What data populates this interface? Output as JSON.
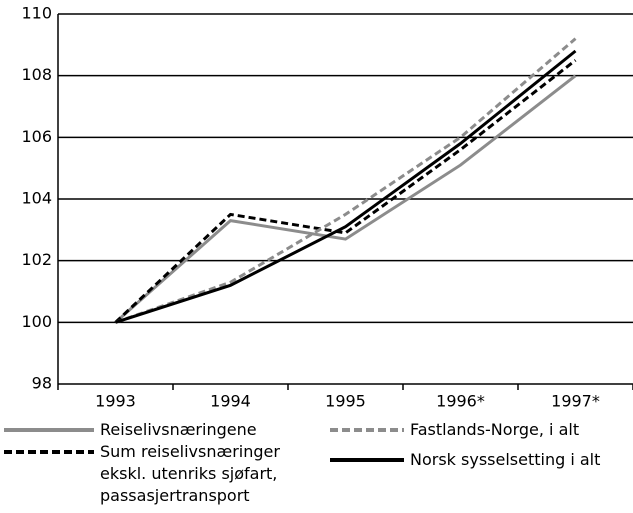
{
  "chart_data": {
    "type": "line",
    "categories": [
      "1993",
      "1994",
      "1995",
      "1996*",
      "1997*"
    ],
    "series": [
      {
        "name": "Reiselivsnæringene",
        "color": "#8c8c8c",
        "dash": false,
        "values": [
          100,
          103.3,
          102.7,
          105.1,
          108.0
        ]
      },
      {
        "name": "Sum reiselivsnæringer\nekskl. utenriks sjøfart,\npassasjertransport",
        "color": "#000000",
        "dash": true,
        "values": [
          100,
          103.5,
          102.9,
          105.6,
          108.5
        ]
      },
      {
        "name": "Fastlands-Norge, i alt",
        "color": "#8c8c8c",
        "dash": true,
        "values": [
          100,
          101.3,
          103.5,
          106.0,
          109.2
        ]
      },
      {
        "name": "Norsk sysselsetting i alt",
        "color": "#000000",
        "dash": false,
        "values": [
          100,
          101.2,
          103.1,
          105.8,
          108.8
        ]
      }
    ],
    "ylim": [
      98,
      110
    ],
    "yticks": [
      98,
      100,
      102,
      104,
      106,
      108,
      110
    ],
    "grid": true
  }
}
